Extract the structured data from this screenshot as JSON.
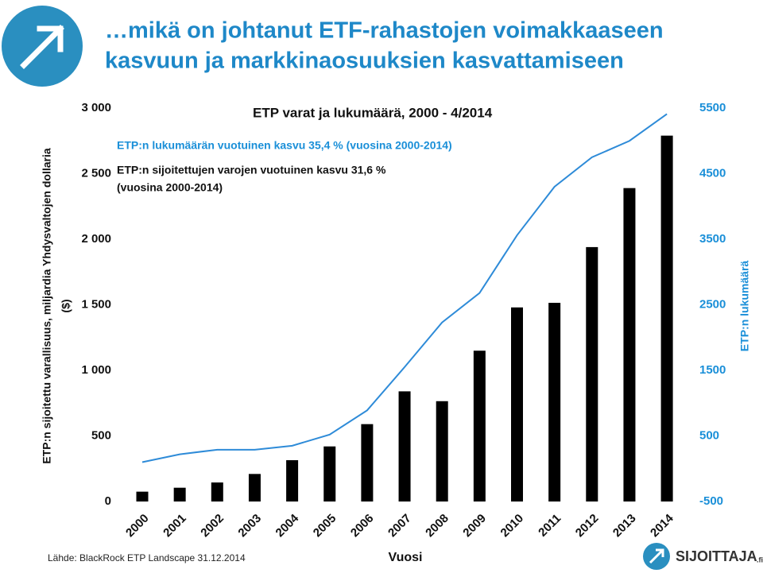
{
  "slide": {
    "title_lines": [
      "…mikä on johtanut ETF-rahastojen voimakkaaseen",
      "kasvuun ja markkinaosuuksien kasvattamiseen"
    ],
    "source": "Lähde: BlackRock ETP Landscape 31.12.2014",
    "brand": "SIJOITTAJA",
    "brand_suffix": ".fi"
  },
  "chart_data": {
    "type": "bar_line",
    "title": "ETP varat ja lukumäärä, 2000 - 4/2014",
    "annotations": [
      {
        "lines": [
          "ETP:n lukumäärän vuotuinen kasvu 35,4 % (vuosina 2000-2014)"
        ],
        "color": "#1a8fd8"
      },
      {
        "lines": [
          "ETP:n sijoitettujen varojen vuotuinen kasvu 31,6 %",
          "(vuosina 2000-2014)"
        ],
        "color": "#111111"
      }
    ],
    "y_label_lines": [
      "ETP:n sijoitettu varallisuus, miljardia Yhdysvaltojen dollaria",
      "($)"
    ],
    "y2_label": "ETP:n lukumäärä",
    "x_label": "Vuosi",
    "categories": [
      "2000",
      "2001",
      "2002",
      "2003",
      "2004",
      "2005",
      "2006",
      "2007",
      "2008",
      "2009",
      "2010",
      "2011",
      "2012",
      "2013",
      "2014"
    ],
    "series": [
      {
        "name": "ETP varat",
        "color": "#000000",
        "kind": "bar",
        "axis": "y",
        "values": [
          75,
          105,
          145,
          210,
          315,
          420,
          590,
          840,
          765,
          1150,
          1480,
          1515,
          1940,
          2390,
          2790
        ]
      },
      {
        "name": "ETP lukumäärä",
        "color": "#2e8bd8",
        "kind": "line",
        "axis": "y2",
        "values": [
          100,
          220,
          290,
          290,
          350,
          520,
          890,
          1550,
          2230,
          2680,
          3560,
          4300,
          4750,
          5000,
          5410
        ]
      }
    ],
    "ylim": [
      0,
      3000
    ],
    "yticks": [
      0,
      500,
      {
        "value": 1000,
        "label": "1 000"
      },
      {
        "value": 1500,
        "label": "1 500"
      },
      {
        "value": 2000,
        "label": "2 000"
      },
      {
        "value": 2500,
        "label": "2 500"
      },
      {
        "value": 3000,
        "label": "3 000"
      }
    ],
    "y2lim": [
      -500,
      5500
    ],
    "y2ticks": [
      -500,
      500,
      1500,
      2500,
      3500,
      4500,
      5500
    ],
    "y2_color": "#1a8fd8",
    "grid": false
  }
}
